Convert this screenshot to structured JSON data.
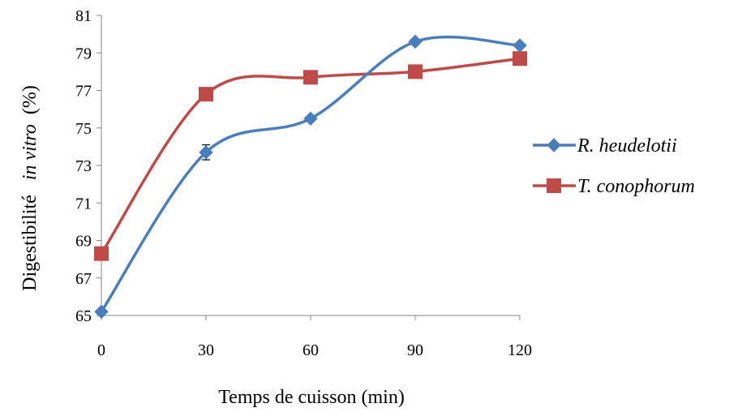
{
  "chart_data": {
    "type": "line",
    "smooth": true,
    "x": [
      0,
      30,
      60,
      90,
      120
    ],
    "x_ticks": [
      "0",
      "30",
      "60",
      "90",
      "120"
    ],
    "xlim": [
      0,
      120
    ],
    "y_ticks": [
      "65",
      "67",
      "69",
      "71",
      "73",
      "75",
      "77",
      "79",
      "81"
    ],
    "ylim": [
      65,
      81
    ],
    "xlabel": "Temps de cuisson (min)",
    "ylabel_part1": "Digestibilité",
    "ylabel_italic": "in vitro",
    "ylabel_part2": "(%)",
    "grid": false,
    "legend_position": "right",
    "series": [
      {
        "name": "R. heudelotii",
        "color": "#4a7ebb",
        "marker": "diamond",
        "values": [
          65.2,
          73.7,
          75.5,
          79.6,
          79.4
        ],
        "errors": [
          0,
          0.4,
          0,
          0,
          0
        ]
      },
      {
        "name": "T. conophorum",
        "color": "#be4b48",
        "marker": "square",
        "values": [
          68.3,
          76.8,
          77.7,
          78.0,
          78.7
        ],
        "errors": [
          0,
          0.25,
          0,
          0,
          0
        ]
      }
    ]
  }
}
